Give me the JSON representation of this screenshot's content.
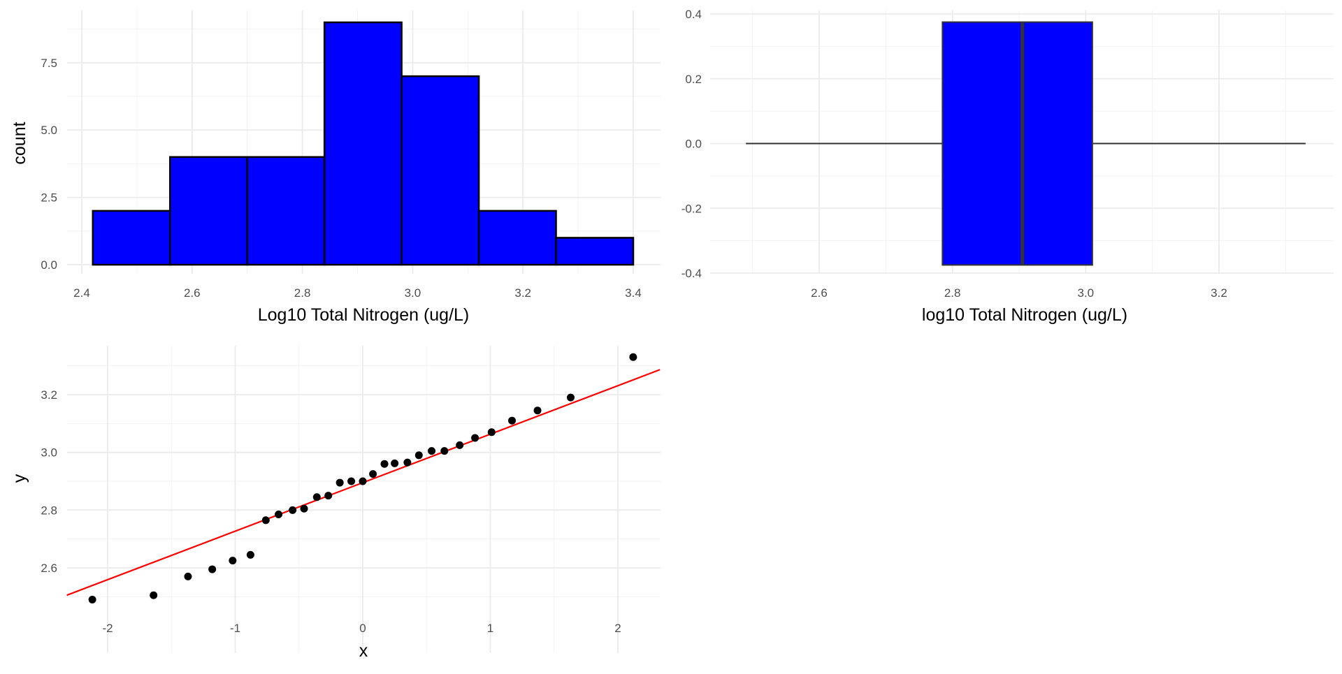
{
  "chart_data": [
    {
      "type": "histogram",
      "xlabel": "Log10 Total Nitrogen (ug/L)",
      "ylabel": "count",
      "xlim": [
        2.4,
        3.4
      ],
      "ylim": [
        0,
        9
      ],
      "x_ticks": [
        "2.4",
        "2.6",
        "2.8",
        "3.0",
        "3.2",
        "3.4"
      ],
      "y_ticks": [
        "0.0",
        "2.5",
        "5.0",
        "7.5"
      ],
      "bins": [
        {
          "x0": 2.42,
          "x1": 2.56,
          "count": 2
        },
        {
          "x0": 2.56,
          "x1": 2.7,
          "count": 4
        },
        {
          "x0": 2.7,
          "x1": 2.84,
          "count": 4
        },
        {
          "x0": 2.84,
          "x1": 2.98,
          "count": 9
        },
        {
          "x0": 2.98,
          "x1": 3.12,
          "count": 7
        },
        {
          "x0": 3.12,
          "x1": 3.26,
          "count": 2
        },
        {
          "x0": 3.26,
          "x1": 3.4,
          "count": 1
        }
      ],
      "fill_color": "#0000ff",
      "outline_color": "#000000",
      "grid": true
    },
    {
      "type": "boxplot",
      "xlabel": "log10 Total Nitrogen (ug/L)",
      "ylabel": "",
      "xlim": [
        2.4,
        3.4
      ],
      "ylim": [
        -0.4,
        0.4
      ],
      "x_ticks": [
        "2.6",
        "2.8",
        "3.0",
        "3.2"
      ],
      "y_ticks": [
        "-0.4",
        "-0.2",
        "0.0",
        "0.2",
        "0.4"
      ],
      "box": {
        "min": 2.49,
        "q1": 2.785,
        "median": 2.905,
        "q3": 3.01,
        "max": 3.33
      },
      "fill_color": "#0000ff",
      "grid": true
    },
    {
      "type": "scatter",
      "xlabel": "x",
      "ylabel": "y",
      "xlim": [
        -2.3,
        2.3
      ],
      "ylim": [
        2.45,
        3.35
      ],
      "x_ticks": [
        "-2",
        "-1",
        "0",
        "1",
        "2"
      ],
      "y_ticks": [
        "2.6",
        "2.8",
        "3.0",
        "3.2"
      ],
      "points": [
        {
          "x": -2.12,
          "y": 2.49
        },
        {
          "x": -1.64,
          "y": 2.505
        },
        {
          "x": -1.37,
          "y": 2.57
        },
        {
          "x": -1.18,
          "y": 2.595
        },
        {
          "x": -1.02,
          "y": 2.625
        },
        {
          "x": -0.88,
          "y": 2.645
        },
        {
          "x": -0.76,
          "y": 2.765
        },
        {
          "x": -0.66,
          "y": 2.785
        },
        {
          "x": -0.55,
          "y": 2.8
        },
        {
          "x": -0.46,
          "y": 2.805
        },
        {
          "x": -0.36,
          "y": 2.845
        },
        {
          "x": -0.27,
          "y": 2.85
        },
        {
          "x": -0.18,
          "y": 2.895
        },
        {
          "x": -0.09,
          "y": 2.9
        },
        {
          "x": 0.0,
          "y": 2.9
        },
        {
          "x": 0.08,
          "y": 2.925
        },
        {
          "x": 0.17,
          "y": 2.96
        },
        {
          "x": 0.25,
          "y": 2.962
        },
        {
          "x": 0.35,
          "y": 2.965
        },
        {
          "x": 0.44,
          "y": 2.99
        },
        {
          "x": 0.54,
          "y": 3.005
        },
        {
          "x": 0.64,
          "y": 3.005
        },
        {
          "x": 0.76,
          "y": 3.025
        },
        {
          "x": 0.88,
          "y": 3.05
        },
        {
          "x": 1.01,
          "y": 3.07
        },
        {
          "x": 1.17,
          "y": 3.11
        },
        {
          "x": 1.37,
          "y": 3.145
        },
        {
          "x": 1.63,
          "y": 3.19
        },
        {
          "x": 2.12,
          "y": 3.33
        }
      ],
      "reference_line": {
        "intercept": 2.895,
        "slope": 0.168,
        "color": "#ff0000"
      },
      "point_color": "#000000",
      "grid": true
    }
  ]
}
